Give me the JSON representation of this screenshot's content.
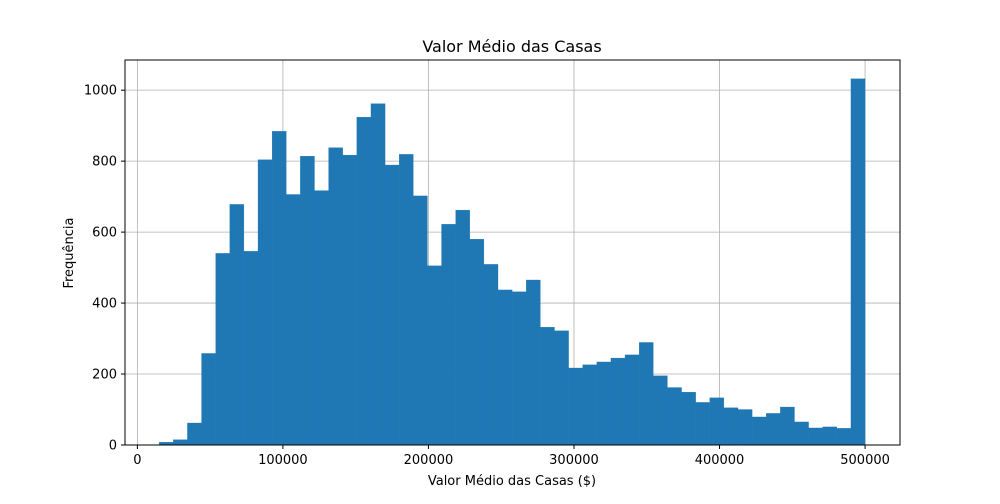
{
  "chart_data": {
    "type": "bar",
    "title": "Valor Médio das Casas",
    "xlabel": "Valor Médio das Casas ($)",
    "ylabel": "Frequência",
    "xlim": [
      -8500,
      524000
    ],
    "ylim": [
      0,
      1085
    ],
    "xticks": [
      0,
      100000,
      200000,
      300000,
      400000,
      500000
    ],
    "xtick_labels": [
      "0",
      "100000",
      "200000",
      "300000",
      "400000",
      "500000"
    ],
    "yticks": [
      0,
      200,
      400,
      600,
      800,
      1000
    ],
    "ytick_labels": [
      "0",
      "200",
      "400",
      "600",
      "800",
      "1000"
    ],
    "grid": true,
    "bar_color": "#1f77b4",
    "bin_edges": [
      14999,
      24700,
      34400,
      44099,
      53799,
      63499,
      73199,
      82899,
      92598,
      102298,
      111998,
      121698,
      131398,
      141097,
      150797,
      160497,
      170197,
      179897,
      189596,
      199296,
      208996,
      218696,
      228396,
      238095,
      247795,
      257495,
      267195,
      276895,
      286594,
      296294,
      305994,
      315694,
      325394,
      335093,
      344793,
      354493,
      364193,
      373893,
      383592,
      393292,
      402992,
      412692,
      422392,
      432091,
      441791,
      451491,
      461191,
      470891,
      480590,
      490290,
      500001
    ],
    "values": [
      8,
      15,
      62,
      258,
      540,
      678,
      546,
      804,
      884,
      706,
      814,
      717,
      838,
      817,
      924,
      962,
      789,
      819,
      702,
      505,
      622,
      662,
      580,
      509,
      437,
      432,
      465,
      332,
      322,
      217,
      226,
      234,
      245,
      254,
      289,
      195,
      162,
      149,
      120,
      133,
      105,
      100,
      79,
      89,
      107,
      65,
      48,
      51,
      47,
      1032
    ]
  }
}
